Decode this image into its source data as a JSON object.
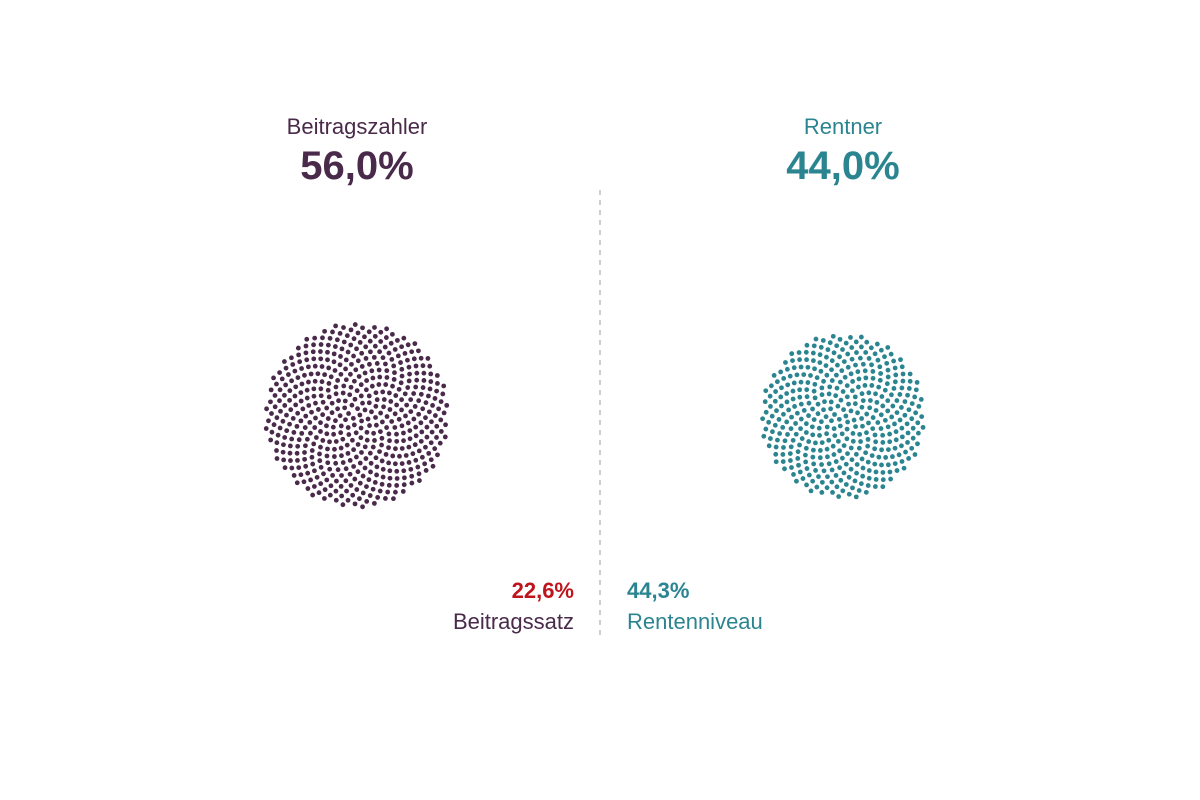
{
  "colors": {
    "payers": "#4a2a4a",
    "pensioners": "#2b8590",
    "accent_red": "#c0141c",
    "divider": "#bdbdbd"
  },
  "chart_data": {
    "type": "dot-cluster",
    "groups": [
      {
        "name": "Beitragszahler",
        "share_label": "56,0%",
        "share": 56.0
      },
      {
        "name": "Rentner",
        "share_label": "44,0%",
        "share": 44.0
      }
    ],
    "indicators": [
      {
        "label": "Beitragssatz",
        "value_label": "22,6%",
        "value": 22.6
      },
      {
        "label": "Rentenniveau",
        "value_label": "44,3%",
        "value": 44.3
      }
    ]
  }
}
